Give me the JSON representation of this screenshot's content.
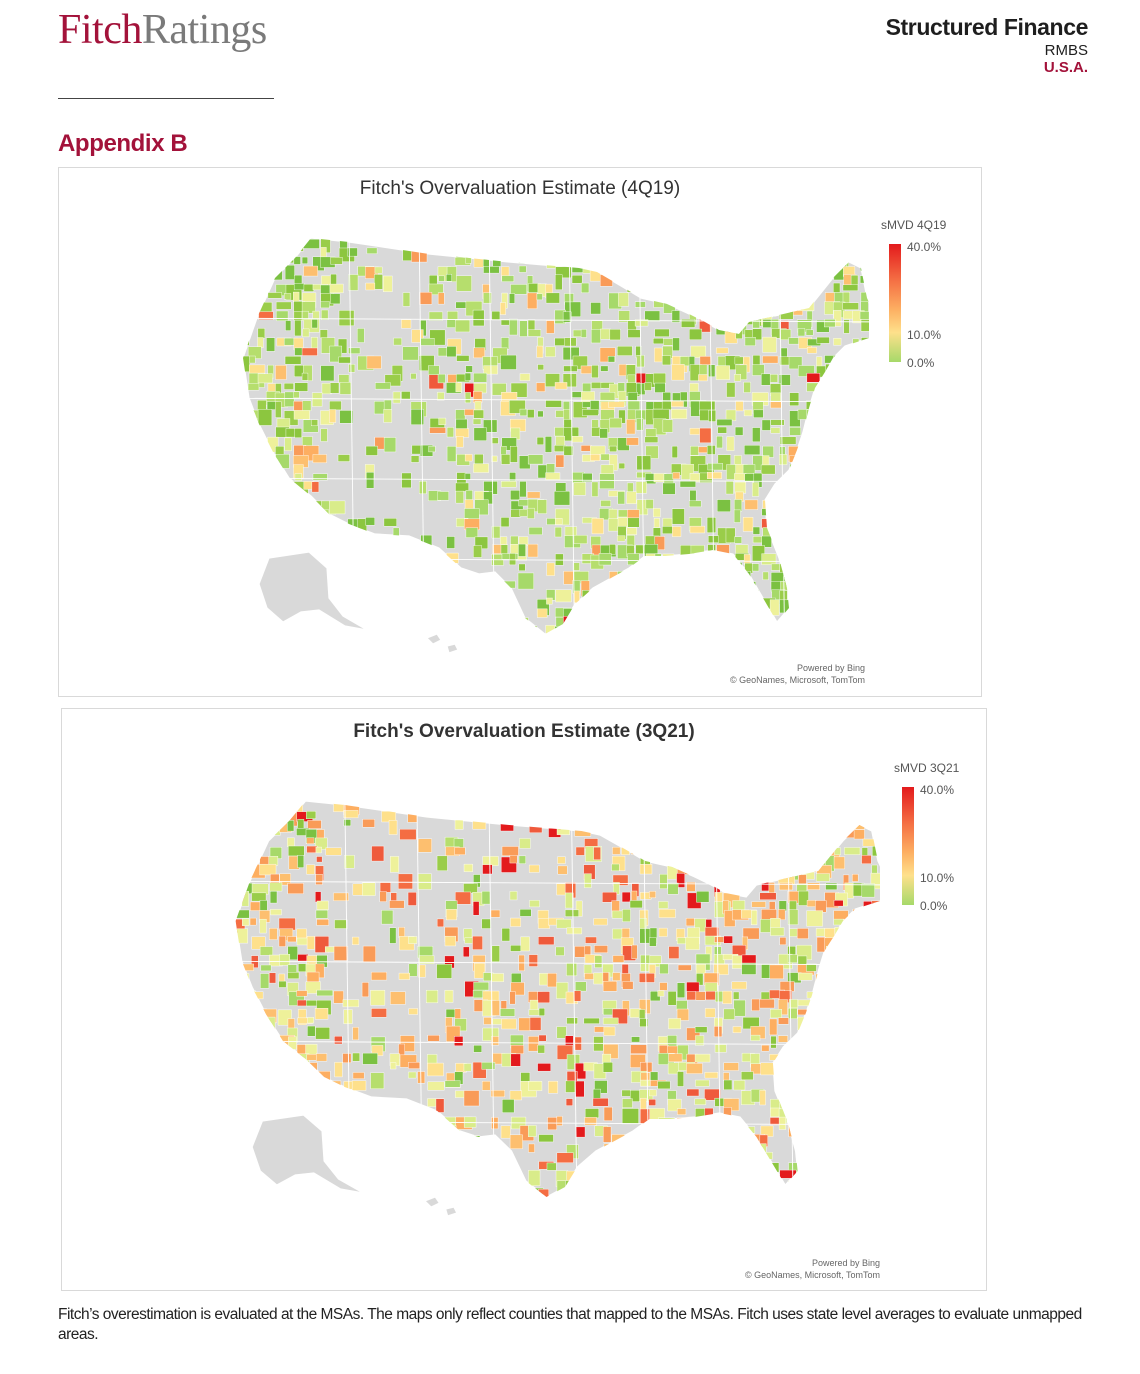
{
  "header": {
    "logo_part1": "Fitch",
    "logo_part2": "Ratings",
    "section": "Structured Finance",
    "subsection": "RMBS",
    "region": "U.S.A."
  },
  "appendix_title": "Appendix B",
  "maps": [
    {
      "title": "Fitch's Overvaluation Estimate (4Q19)",
      "legend_title": "sMVD 4Q19",
      "legend_max": "40.0%",
      "legend_mid": "10.0%",
      "legend_min": "0.0%",
      "attribution_line1": "Powered by Bing",
      "attribution_line2": "© GeoNames, Microsoft, TomTom"
    },
    {
      "title": "Fitch's Overvaluation  Estimate (3Q21)",
      "legend_title": "sMVD 3Q21",
      "legend_max": "40.0%",
      "legend_mid": "10.0%",
      "legend_min": "0.0%",
      "attribution_line1": "Powered by Bing",
      "attribution_line2": "© GeoNames, Microsoft, TomTom"
    }
  ],
  "colors": {
    "brand": "#a3123a",
    "scale_high": "#e31a1c",
    "scale_mid": "#fdae61",
    "scale_low": "#a6d96a",
    "land": "#d9d9d9"
  },
  "footnote": "Fitch’s overestimation is evaluated at the MSAs. The maps only reflect counties that mapped to the MSAs. Fitch uses state level averages to evaluate unmapped areas."
}
